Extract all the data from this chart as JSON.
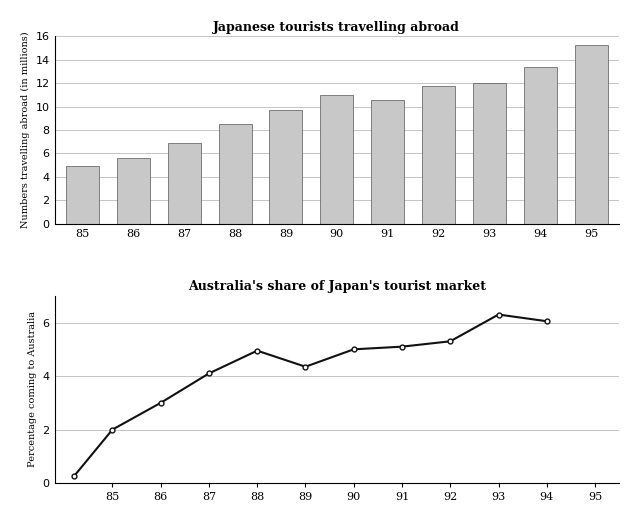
{
  "bar_years": [
    "85",
    "86",
    "87",
    "88",
    "89",
    "90",
    "91",
    "92",
    "93",
    "94",
    "95"
  ],
  "bar_values": [
    4.9,
    5.6,
    6.9,
    8.5,
    9.7,
    11.0,
    10.6,
    11.8,
    12.0,
    13.4,
    15.3
  ],
  "bar_title": "Japanese tourists travelling abroad",
  "bar_ylabel": "Numbers travelling abroad (in millions)",
  "bar_ylim": [
    0,
    16
  ],
  "bar_yticks": [
    0,
    2,
    4,
    6,
    8,
    10,
    12,
    14,
    16
  ],
  "bar_color": "#c8c8c8",
  "bar_edgecolor": "#555555",
  "line_x": [
    84.2,
    85,
    86,
    87,
    88,
    89,
    90,
    91,
    92,
    93,
    94
  ],
  "line_values": [
    0.25,
    2.0,
    3.0,
    4.1,
    4.95,
    4.35,
    5.0,
    5.1,
    5.3,
    6.3,
    6.05
  ],
  "line_xlim": [
    83.8,
    95.5
  ],
  "line_xticks": [
    85,
    86,
    87,
    88,
    89,
    90,
    91,
    92,
    93,
    94,
    95
  ],
  "line_xticklabels": [
    "85",
    "86",
    "87",
    "88",
    "89",
    "90",
    "91",
    "92",
    "93",
    "94",
    "95"
  ],
  "line_ylim": [
    0,
    7
  ],
  "line_yticks": [
    0,
    2,
    4,
    6
  ],
  "line_title": "Australia's share of Japan's tourist market",
  "line_ylabel": "Percentage coming to Australia",
  "line_color": "#111111",
  "marker_facecolor": "#ffffff",
  "marker_edgecolor": "#111111",
  "bg_color": "#ffffff",
  "grid_color": "#bbbbbb"
}
